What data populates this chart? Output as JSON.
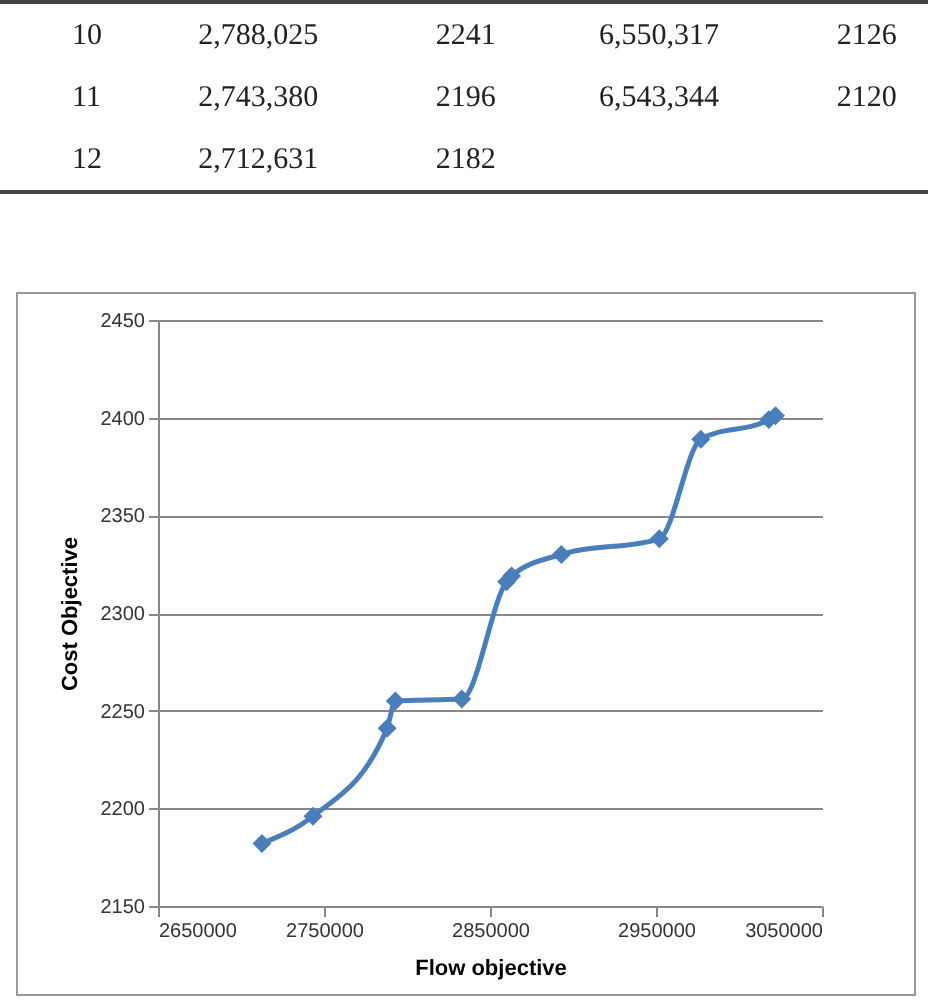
{
  "chart_data": {
    "type": "line",
    "xlabel": "Flow objective",
    "ylabel": "Cost Objective",
    "annotations": [
      "10  2,788,025  2241  6,550,317  2126",
      "11  2,743,380  2196  6,543,344  2120",
      "12  2,712,631  2182"
    ],
    "x": [
      2712631,
      2743380,
      2788025,
      2793000,
      2833000,
      2860000,
      2863000,
      2893000,
      2952000,
      2977000,
      3018000,
      3022000
    ],
    "series": [
      {
        "color": "#4a7ebb",
        "values": [
          2182,
          2196,
          2241,
          2255,
          2256,
          2316,
          2319,
          2330,
          2338,
          2389,
          2399,
          2401
        ]
      }
    ],
    "xlim": [
      2650000,
      3050000
    ],
    "xticks": [
      2650000,
      2750000,
      2850000,
      2950000,
      3050000
    ],
    "ylim": [
      2150,
      2450
    ],
    "yticks": [
      2150,
      2200,
      2250,
      2300,
      2350,
      2400,
      2450
    ],
    "grid": "y",
    "marker": "diamond",
    "line_style": "solid"
  }
}
